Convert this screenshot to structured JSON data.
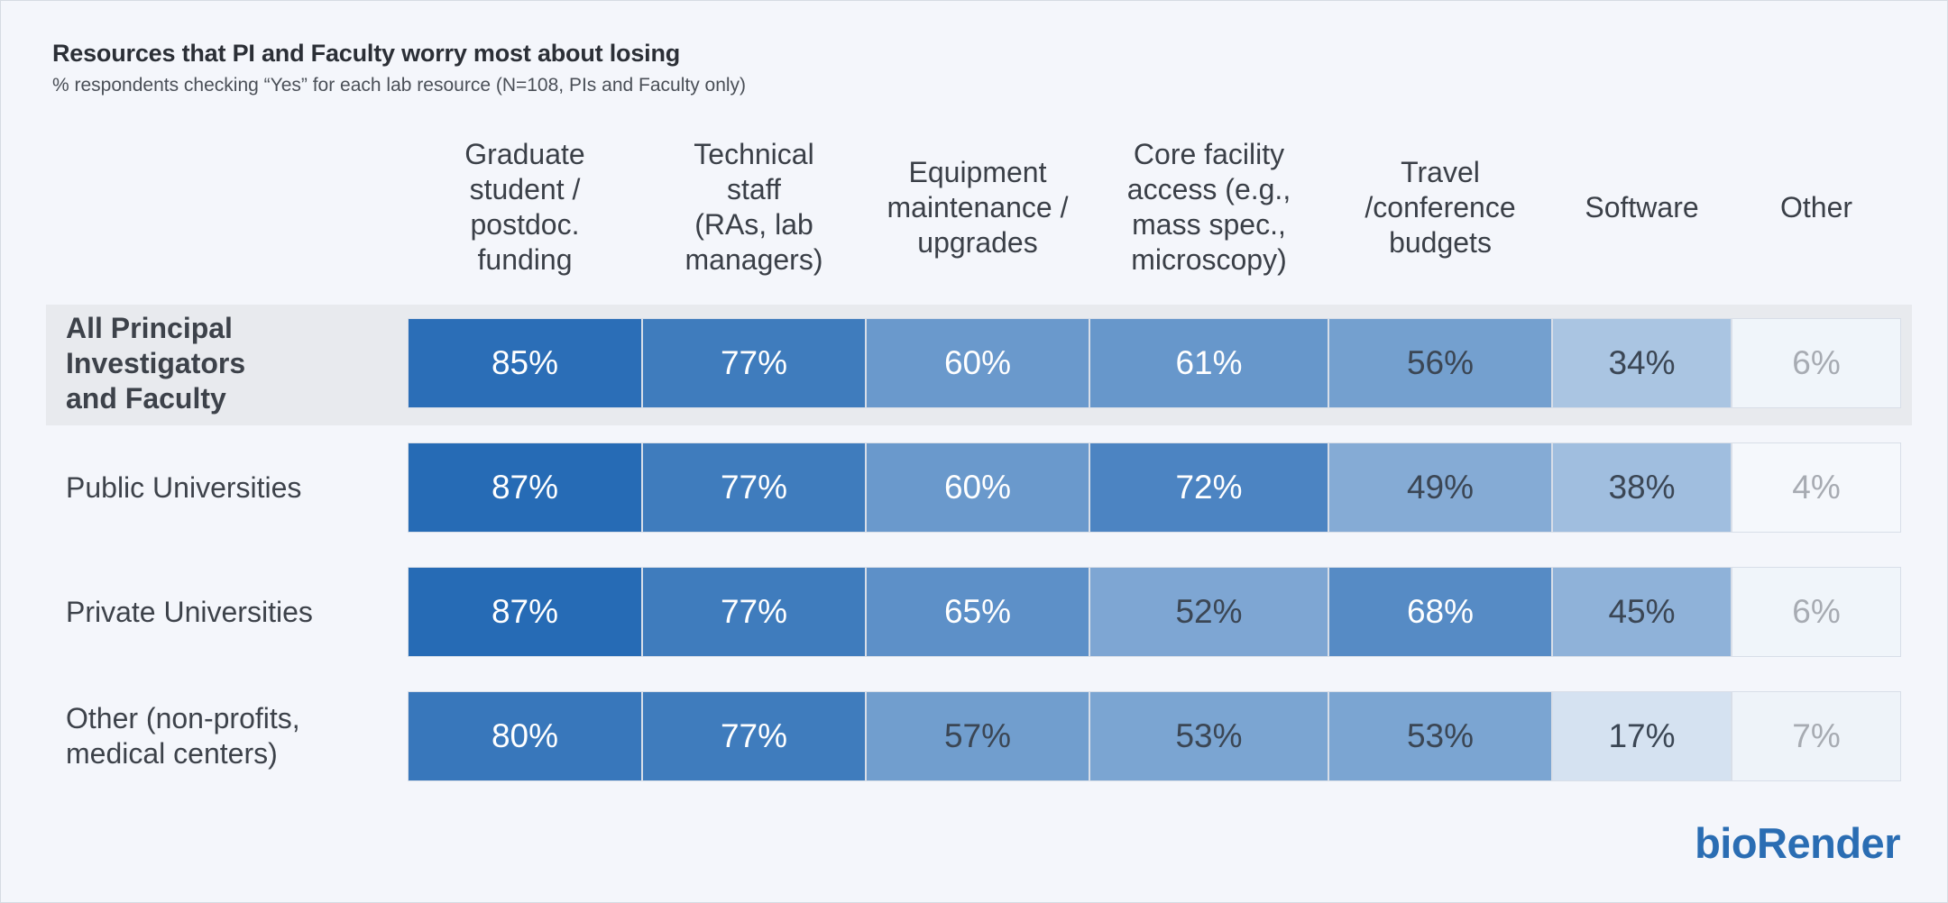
{
  "chart_data": {
    "type": "table",
    "title": "Resources that PI and Faculty worry most about losing",
    "subtitle": "% respondents checking “Yes” for each lab resource (N=108, PIs and Faculty only)",
    "columns": [
      "Graduate\nstudent /\npostdoc.\nfunding",
      "Technical\nstaff\n(RAs, lab\nmanagers)",
      "Equipment\nmaintenance /\nupgrades",
      "Core facility\naccess (e.g.,\nmass spec.,\nmicroscopy)",
      "Travel\n/conference\nbudgets",
      "Software",
      "Other"
    ],
    "rows": [
      {
        "label": "All Principal\nInvestigators\nand Faculty",
        "highlight": true,
        "values": [
          85,
          77,
          60,
          61,
          56,
          34,
          6
        ]
      },
      {
        "label": "Public Universities",
        "highlight": false,
        "values": [
          87,
          77,
          60,
          72,
          49,
          38,
          4
        ]
      },
      {
        "label": "Private Universities",
        "highlight": false,
        "values": [
          87,
          77,
          65,
          52,
          68,
          45,
          6
        ]
      },
      {
        "label": "Other (non-profits,\nmedical centers)",
        "highlight": false,
        "values": [
          80,
          77,
          57,
          53,
          53,
          17,
          7
        ]
      }
    ],
    "unit": "%",
    "color_scale": {
      "low": "#ffffff",
      "high": "#2469b4"
    }
  },
  "logo_text": "bioRender"
}
